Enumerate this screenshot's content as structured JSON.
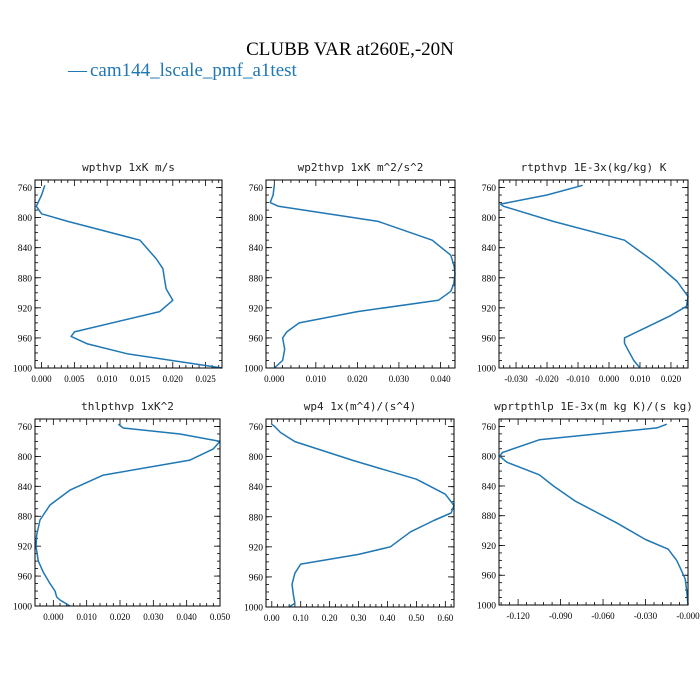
{
  "figure": {
    "title": "CLUBB VAR at260E,-20N",
    "legend_label": "cam144_lscale_pmf_a1test",
    "legend_marker": "—",
    "line_color": "#1f77b4"
  },
  "chart_data": [
    {
      "type": "line",
      "title": "wpthvp  1xK m/s",
      "x_ticks": [
        "0.000",
        "0.005",
        "0.010",
        "0.015",
        "0.020",
        "0.025"
      ],
      "xlim": [
        -0.001,
        0.0275
      ],
      "y_ticks": [
        "760",
        "800",
        "840",
        "880",
        "920",
        "960",
        "1000"
      ],
      "ylim": [
        1000,
        750
      ],
      "series": [
        {
          "x": [
            0.0005,
            0.0,
            -0.0008,
            0.0,
            0.004,
            0.015,
            0.0175,
            0.0185,
            0.0187,
            0.019,
            0.02,
            0.018,
            0.005,
            0.0045,
            0.007,
            0.013,
            0.0275
          ],
          "y": [
            757,
            770,
            785,
            795,
            805,
            830,
            855,
            868,
            880,
            895,
            910,
            925,
            952,
            958,
            968,
            981,
            1000
          ]
        }
      ]
    },
    {
      "type": "line",
      "title": "wp2thvp  1xK m^2/s^2",
      "x_ticks": [
        "0.000",
        "0.010",
        "0.020",
        "0.030",
        "0.040"
      ],
      "xlim": [
        -0.002,
        0.0435
      ],
      "y_ticks": [
        "760",
        "800",
        "840",
        "880",
        "920",
        "960",
        "1000"
      ],
      "ylim": [
        1000,
        750
      ],
      "series": [
        {
          "x": [
            0.0,
            -0.0003,
            -0.001,
            0.001,
            0.025,
            0.038,
            0.0425,
            0.0433,
            0.0435,
            0.0432,
            0.0425,
            0.0395,
            0.02,
            0.006,
            0.003,
            0.002,
            0.0025,
            0.002,
            0.0
          ],
          "y": [
            757,
            770,
            780,
            785,
            805,
            830,
            850,
            865,
            875,
            888,
            898,
            910,
            925,
            940,
            952,
            960,
            975,
            990,
            1000
          ]
        }
      ]
    },
    {
      "type": "line",
      "title": "rtpthvp  1E-3x(kg/kg) K",
      "x_ticks": [
        "-0.030",
        "-0.020",
        "-0.010",
        "0.000",
        "0.010",
        "0.020"
      ],
      "xlim": [
        -0.0355,
        0.0255
      ],
      "y_ticks": [
        "760",
        "800",
        "840",
        "880",
        "920",
        "960",
        "1000"
      ],
      "ylim": [
        1000,
        750
      ],
      "series": [
        {
          "x": [
            -0.0085,
            -0.02,
            -0.035,
            -0.034,
            -0.018,
            0.005,
            0.015,
            0.022,
            0.0255,
            0.025,
            0.02,
            0.011,
            0.005,
            0.005,
            0.006,
            0.008,
            0.01
          ],
          "y": [
            757,
            770,
            782,
            785,
            805,
            830,
            860,
            885,
            905,
            918,
            930,
            948,
            960,
            967,
            975,
            990,
            1000
          ]
        }
      ]
    },
    {
      "type": "line",
      "title": "thlpthvp  1xK^2",
      "x_ticks": [
        "0.000",
        "0.010",
        "0.020",
        "0.030",
        "0.040",
        "0.050"
      ],
      "xlim": [
        -0.0055,
        0.05
      ],
      "y_ticks": [
        "760",
        "800",
        "840",
        "880",
        "920",
        "960",
        "1000"
      ],
      "ylim": [
        1000,
        750
      ],
      "series": [
        {
          "x": [
            0.0195,
            0.021,
            0.038,
            0.05,
            0.048,
            0.041,
            0.015,
            0.005,
            -0.001,
            -0.004,
            -0.005,
            -0.0052,
            -0.0045,
            -0.003,
            -0.001,
            0.0005,
            0.001,
            0.002,
            0.005
          ],
          "y": [
            757,
            762,
            770,
            780,
            790,
            805,
            825,
            845,
            865,
            885,
            905,
            920,
            940,
            955,
            970,
            980,
            988,
            992,
            1000
          ]
        }
      ]
    },
    {
      "type": "line",
      "title": "wp4  1x(m^4)/(s^4)",
      "x_ticks": [
        "0.00",
        "0.10",
        "0.20",
        "0.30",
        "0.40",
        "0.50",
        "0.60"
      ],
      "xlim": [
        -0.02,
        0.63
      ],
      "y_ticks": [
        "760",
        "800",
        "840",
        "880",
        "920",
        "960",
        "1000"
      ],
      "ylim": [
        1000,
        750
      ],
      "series": [
        {
          "x": [
            0.0,
            0.01,
            0.03,
            0.08,
            0.28,
            0.5,
            0.6,
            0.63,
            0.62,
            0.56,
            0.48,
            0.41,
            0.3,
            0.1,
            0.08,
            0.07,
            0.075,
            0.08,
            0.06
          ],
          "y": [
            757,
            760,
            768,
            780,
            805,
            830,
            850,
            865,
            875,
            885,
            900,
            920,
            930,
            943,
            955,
            970,
            985,
            995,
            1000
          ]
        }
      ]
    },
    {
      "type": "line",
      "title": "wprtpthlp  1E-3x(m kg K)/(s kg)",
      "x_ticks": [
        "-0.120",
        "-0.090",
        "-0.060",
        "-0.030",
        "-0.000"
      ],
      "xlim": [
        -0.1335,
        0.0
      ],
      "y_ticks": [
        "760",
        "800",
        "840",
        "880",
        "920",
        "960",
        "1000"
      ],
      "ylim": [
        1000,
        750
      ],
      "series": [
        {
          "x": [
            -0.015,
            -0.022,
            -0.105,
            -0.131,
            -0.133,
            -0.128,
            -0.105,
            -0.095,
            -0.08,
            -0.05,
            -0.03,
            -0.014,
            -0.008,
            -0.005,
            -0.002,
            -0.001,
            0.0
          ],
          "y": [
            757,
            762,
            778,
            795,
            800,
            808,
            825,
            840,
            860,
            890,
            912,
            925,
            940,
            952,
            965,
            980,
            1000
          ]
        }
      ]
    }
  ]
}
